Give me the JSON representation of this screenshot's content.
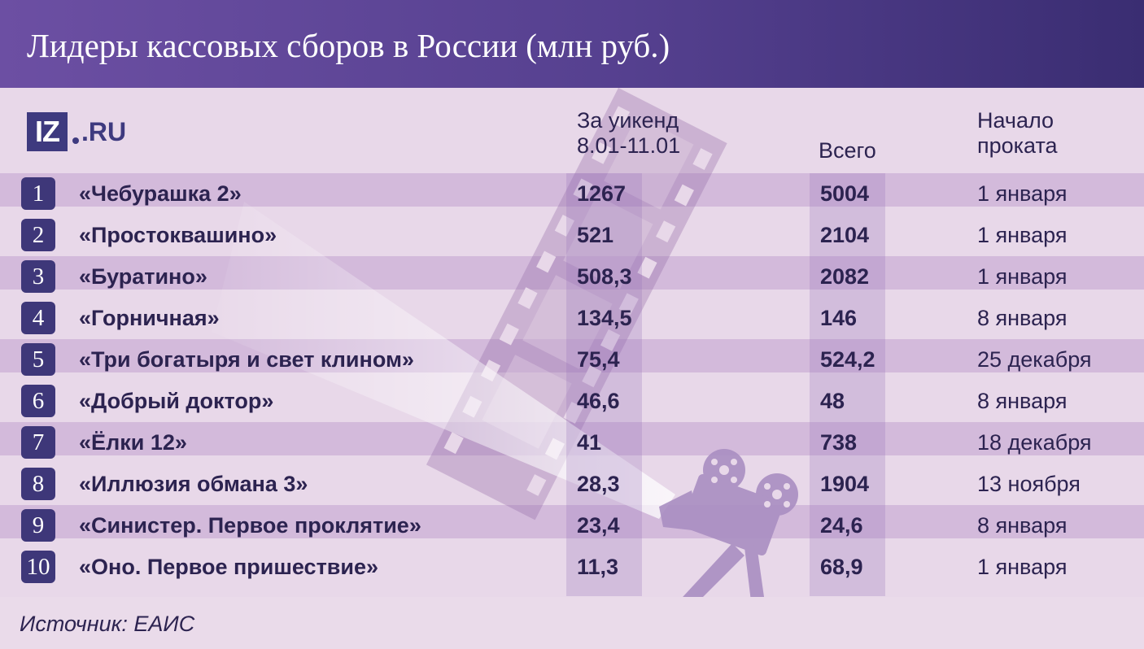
{
  "header": {
    "title": "Лидеры кассовых сборов в России (млн руб.)"
  },
  "logo": {
    "mark": "IZ",
    "text": ".RU"
  },
  "columns": {
    "weekend_line1": "За уикенд",
    "weekend_line2": "8.01-11.01",
    "total": "Всего",
    "start_line1": "Начало",
    "start_line2": "проката"
  },
  "chart_data": {
    "type": "table",
    "title": "Лидеры кассовых сборов в России (млн руб.)",
    "columns": [
      "",
      "",
      "За уикенд 8.01-11.01",
      "Всего",
      "Начало проката"
    ],
    "rows": [
      {
        "rank": "1",
        "title": "«Чебурашка 2»",
        "weekend": "1267",
        "total": "5004",
        "start": "1 января"
      },
      {
        "rank": "2",
        "title": "«Простоквашино»",
        "weekend": "521",
        "total": "2104",
        "start": "1 января"
      },
      {
        "rank": "3",
        "title": "«Буратино»",
        "weekend": "508,3",
        "total": "2082",
        "start": "1 января"
      },
      {
        "rank": "4",
        "title": "«Горничная»",
        "weekend": "134,5",
        "total": "146",
        "start": "8 января"
      },
      {
        "rank": "5",
        "title": "«Три богатыря и свет клином»",
        "weekend": "75,4",
        "total": "524,2",
        "start": "25 декабря"
      },
      {
        "rank": "6",
        "title": "«Добрый доктор»",
        "weekend": "46,6",
        "total": "48",
        "start": "8 января"
      },
      {
        "rank": "7",
        "title": "«Ёлки 12»",
        "weekend": "41",
        "total": "738",
        "start": "18 декабря"
      },
      {
        "rank": "8",
        "title": "«Иллюзия обмана 3»",
        "weekend": "28,3",
        "total": "1904",
        "start": "13 ноября"
      },
      {
        "rank": "9",
        "title": "«Синистер. Первое проклятие»",
        "weekend": "23,4",
        "total": "24,6",
        "start": "8 января"
      },
      {
        "rank": "10",
        "title": "«Оно. Первое пришествие»",
        "weekend": "11,3",
        "total": "68,9",
        "start": "1 января"
      }
    ]
  },
  "footer": {
    "source": "Источник: ЕАИС"
  },
  "colors": {
    "header": "#55408f",
    "rank_badge": "#3e3779",
    "background": "#eadbea"
  },
  "icons": {
    "decoration": "film-projector-icon"
  }
}
